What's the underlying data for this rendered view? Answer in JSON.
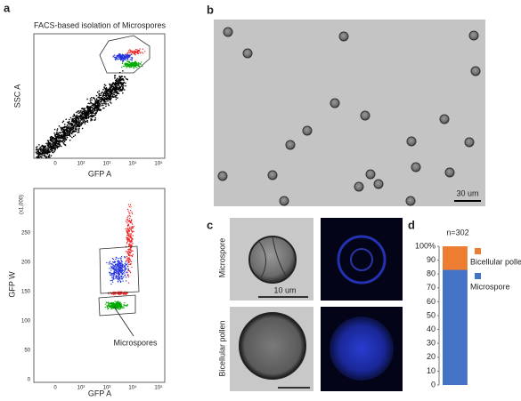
{
  "panel_a": {
    "label": "a",
    "title": "FACS-based isolation of Microspores",
    "top_plot": {
      "y_label": "SSC A",
      "x_label": "GFP A",
      "x_ticks": [
        "0",
        "10²",
        "10³",
        "10⁴",
        "10⁵"
      ]
    },
    "bottom_plot": {
      "y_label": "GFP W",
      "x_label": "GFP A",
      "y_unit": "(x1,000)",
      "y_ticks": [
        "250",
        "200",
        "150",
        "100",
        "50",
        "0"
      ],
      "x_ticks": [
        "0",
        "10²",
        "10³",
        "10⁴",
        "10⁵"
      ],
      "gate_label": "Microspores"
    }
  },
  "panel_b": {
    "label": "b",
    "scale_bar": "30 um"
  },
  "panel_c": {
    "label": "c",
    "rows": [
      "Microspore",
      "Bicellular pollen"
    ],
    "scale_bar": "10 um"
  },
  "panel_d": {
    "label": "d"
  },
  "chart_data": {
    "type": "stacked-bar",
    "title": "n=302",
    "categories": [
      null
    ],
    "series": [
      {
        "name": "Microspore",
        "color": "#4472c4",
        "values": [
          83
        ]
      },
      {
        "name": "Bicellular pollen",
        "color": "#ed7d31",
        "values": [
          17
        ]
      }
    ],
    "ylim": [
      0,
      100
    ],
    "yticks": [
      0,
      10,
      20,
      30,
      40,
      50,
      60,
      70,
      80,
      90,
      {
        "value": 100,
        "label": "100%"
      }
    ]
  }
}
